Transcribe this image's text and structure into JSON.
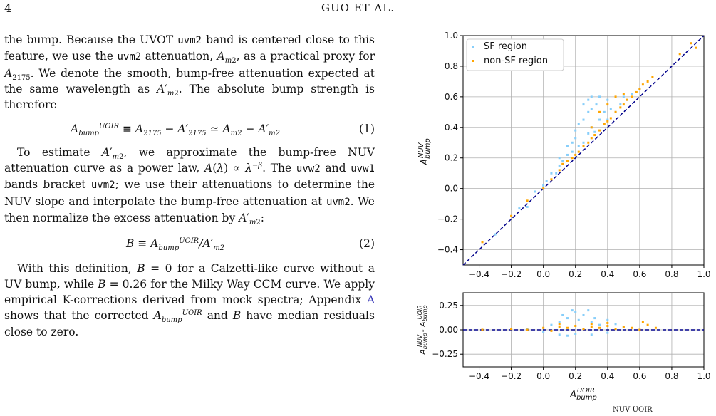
{
  "header": {
    "page_number": "4",
    "running_title": "GUO ET AL."
  },
  "text": {
    "p1_lines": [
      "the bump. Because the UVOT",
      "band is centered",
      "close to this feature, we use the",
      "attenuation,",
      "as a practical proxy for",
      ". We denote the smooth,",
      "bump-free attenuation expected at the same wavelength",
      "as",
      ". The absolute bump strength is therefore"
    ],
    "band_uvm2": "uvm2",
    "band_uvw2": "uvw2",
    "band_uvw1": "uvw1",
    "eq1": "A_bump^UOIR ≡ A_2175 − A′_2175 ≃ A_m2 − A′_m2",
    "eq1_num": "(1)",
    "p2_a": "To estimate",
    "p2_b": ", we approximate the bump-free NUV attenuation curve as a power law,",
    "p2_c": ". The",
    "p2_d": "and",
    "p2_e": "bands bracket",
    "p2_f": "; we use their attenuations to determine the NUV slope and interpolate the bump-free attenuation at",
    "p2_g": ". We then normalize the excess attenuation by",
    "eq2_num": "(2)",
    "p3_a": "With this definition,",
    "p3_b": "for a Calzetti-like curve without a UV bump, while",
    "p3_c": "for the Milky Way CCM curve. We apply empirical K-corrections derived from mock spectra; Appendix",
    "appendix_ref": "A",
    "p3_d": "shows that the corrected",
    "p3_e": "and",
    "p3_f": "have median residuals close to zero.",
    "bottom_fragment": "NUV      UOIR"
  },
  "chart_data": [
    {
      "type": "scatter",
      "title": "",
      "xlabel": "",
      "ylabel": "A_bump^NUV",
      "xlim": [
        -0.5,
        1.0
      ],
      "ylim": [
        -0.5,
        1.0
      ],
      "xticks": [
        "−0.4",
        "−0.2",
        "0.0",
        "0.2",
        "0.4",
        "0.6",
        "0.8",
        "1.0"
      ],
      "yticks": [
        "−0.4",
        "−0.2",
        "0.0",
        "0.2",
        "0.4",
        "0.6",
        "0.8",
        "1.0"
      ],
      "grid": true,
      "legend_position": "top-left",
      "reference_line": "y = x",
      "series": [
        {
          "name": "SF region",
          "color": "#87cefa",
          "points": [
            [
              -0.3,
              -0.3
            ],
            [
              -0.15,
              -0.13
            ],
            [
              -0.1,
              -0.12
            ],
            [
              -0.05,
              -0.02
            ],
            [
              0.0,
              0.02
            ],
            [
              0.02,
              0.05
            ],
            [
              0.05,
              0.1
            ],
            [
              0.08,
              0.1
            ],
            [
              0.1,
              0.15
            ],
            [
              0.1,
              0.2
            ],
            [
              0.12,
              0.18
            ],
            [
              0.15,
              0.22
            ],
            [
              0.15,
              0.28
            ],
            [
              0.18,
              0.3
            ],
            [
              0.18,
              0.24
            ],
            [
              0.2,
              0.33
            ],
            [
              0.2,
              0.38
            ],
            [
              0.22,
              0.28
            ],
            [
              0.22,
              0.42
            ],
            [
              0.25,
              0.3
            ],
            [
              0.25,
              0.45
            ],
            [
              0.28,
              0.36
            ],
            [
              0.28,
              0.5
            ],
            [
              0.3,
              0.4
            ],
            [
              0.3,
              0.52
            ],
            [
              0.32,
              0.37
            ],
            [
              0.33,
              0.55
            ],
            [
              0.35,
              0.45
            ],
            [
              0.35,
              0.6
            ],
            [
              0.38,
              0.5
            ],
            [
              0.4,
              0.45
            ],
            [
              0.4,
              0.58
            ],
            [
              0.42,
              0.52
            ],
            [
              0.45,
              0.5
            ],
            [
              0.48,
              0.55
            ],
            [
              0.5,
              0.6
            ],
            [
              0.52,
              0.58
            ],
            [
              0.55,
              0.62
            ],
            [
              0.6,
              0.65
            ],
            [
              0.28,
              0.58
            ],
            [
              0.3,
              0.6
            ],
            [
              0.25,
              0.55
            ]
          ]
        },
        {
          "name": "non-SF region",
          "color": "#ffa500",
          "points": [
            [
              -0.38,
              -0.35
            ],
            [
              -0.2,
              -0.18
            ],
            [
              -0.1,
              -0.08
            ],
            [
              0.0,
              0.0
            ],
            [
              0.05,
              0.06
            ],
            [
              0.1,
              0.12
            ],
            [
              0.12,
              0.16
            ],
            [
              0.15,
              0.18
            ],
            [
              0.18,
              0.2
            ],
            [
              0.2,
              0.22
            ],
            [
              0.22,
              0.24
            ],
            [
              0.25,
              0.28
            ],
            [
              0.28,
              0.3
            ],
            [
              0.3,
              0.33
            ],
            [
              0.32,
              0.35
            ],
            [
              0.35,
              0.38
            ],
            [
              0.38,
              0.42
            ],
            [
              0.4,
              0.44
            ],
            [
              0.42,
              0.46
            ],
            [
              0.45,
              0.5
            ],
            [
              0.48,
              0.53
            ],
            [
              0.5,
              0.55
            ],
            [
              0.52,
              0.58
            ],
            [
              0.55,
              0.6
            ],
            [
              0.58,
              0.63
            ],
            [
              0.6,
              0.65
            ],
            [
              0.62,
              0.68
            ],
            [
              0.65,
              0.7
            ],
            [
              0.68,
              0.73
            ],
            [
              0.3,
              0.4
            ],
            [
              0.35,
              0.5
            ],
            [
              0.4,
              0.55
            ],
            [
              0.45,
              0.6
            ],
            [
              0.5,
              0.62
            ],
            [
              0.85,
              0.88
            ],
            [
              0.92,
              0.95
            ],
            [
              0.95,
              0.92
            ]
          ]
        }
      ]
    },
    {
      "type": "scatter",
      "title": "",
      "xlabel": "A_bump^UOIR",
      "ylabel": "A_bump^NUV - A_bump^UOIR",
      "xlim": [
        -0.5,
        1.0
      ],
      "ylim": [
        -0.38,
        0.38
      ],
      "xticks": [
        "−0.4",
        "−0.2",
        "0.0",
        "0.2",
        "0.4",
        "0.6",
        "0.8",
        "1.0"
      ],
      "yticks": [
        "0.25",
        "0.00",
        "−0.25"
      ],
      "grid": true,
      "reference_line": "y = 0",
      "series": [
        {
          "name": "SF region",
          "color": "#87cefa",
          "points": [
            [
              -0.1,
              0.01
            ],
            [
              0.0,
              -0.02
            ],
            [
              0.05,
              0.05
            ],
            [
              0.1,
              0.08
            ],
            [
              0.12,
              0.15
            ],
            [
              0.15,
              0.12
            ],
            [
              0.18,
              0.2
            ],
            [
              0.2,
              0.18
            ],
            [
              0.22,
              0.1
            ],
            [
              0.25,
              0.15
            ],
            [
              0.28,
              0.2
            ],
            [
              0.3,
              0.08
            ],
            [
              0.32,
              0.12
            ],
            [
              0.35,
              0.05
            ],
            [
              0.4,
              0.1
            ],
            [
              0.45,
              0.06
            ],
            [
              0.5,
              0.03
            ],
            [
              0.1,
              -0.05
            ],
            [
              0.2,
              -0.04
            ],
            [
              0.3,
              -0.05
            ],
            [
              0.4,
              -0.03
            ],
            [
              0.15,
              -0.06
            ]
          ]
        },
        {
          "name": "non-SF region",
          "color": "#ffa500",
          "points": [
            [
              -0.38,
              0.0
            ],
            [
              -0.2,
              0.01
            ],
            [
              -0.1,
              0.0
            ],
            [
              0.0,
              0.02
            ],
            [
              0.05,
              -0.01
            ],
            [
              0.1,
              0.03
            ],
            [
              0.15,
              0.02
            ],
            [
              0.2,
              0.04
            ],
            [
              0.25,
              0.01
            ],
            [
              0.3,
              0.03
            ],
            [
              0.35,
              0.02
            ],
            [
              0.4,
              0.04
            ],
            [
              0.45,
              0.01
            ],
            [
              0.5,
              0.03
            ],
            [
              0.55,
              0.02
            ],
            [
              0.6,
              0.0
            ],
            [
              0.62,
              0.08
            ],
            [
              0.65,
              0.05
            ],
            [
              0.7,
              0.02
            ],
            [
              0.1,
              0.06
            ],
            [
              0.3,
              0.06
            ],
            [
              0.4,
              0.07
            ]
          ]
        }
      ]
    }
  ]
}
